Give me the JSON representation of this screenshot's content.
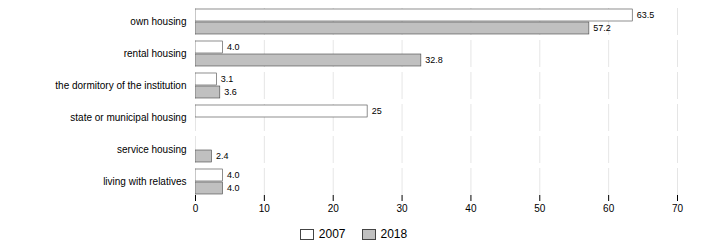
{
  "chart_data": {
    "type": "bar",
    "orientation": "horizontal",
    "categories": [
      "own housing",
      "rental housing",
      "the dormitory of the institution",
      "state or municipal housing",
      "service housing",
      "living with relatives"
    ],
    "series": [
      {
        "name": "2007",
        "color": "#ffffff",
        "values": [
          63.5,
          4.0,
          3.1,
          25,
          0,
          4.0
        ],
        "value_labels": [
          "63.5",
          "4.0",
          "3.1",
          "25",
          null,
          "4.0"
        ]
      },
      {
        "name": "2018",
        "color": "#c0c0c0",
        "values": [
          57.2,
          32.8,
          3.6,
          0,
          2.4,
          4.0
        ],
        "value_labels": [
          "57.2",
          "32.8",
          "3.6",
          null,
          "2.4",
          "4.0"
        ]
      }
    ],
    "xlim": [
      0,
      70
    ],
    "xticks": [
      0,
      10,
      20,
      30,
      40,
      50,
      60,
      70
    ],
    "grid": true,
    "data_labels": true,
    "legend": "bottom"
  }
}
